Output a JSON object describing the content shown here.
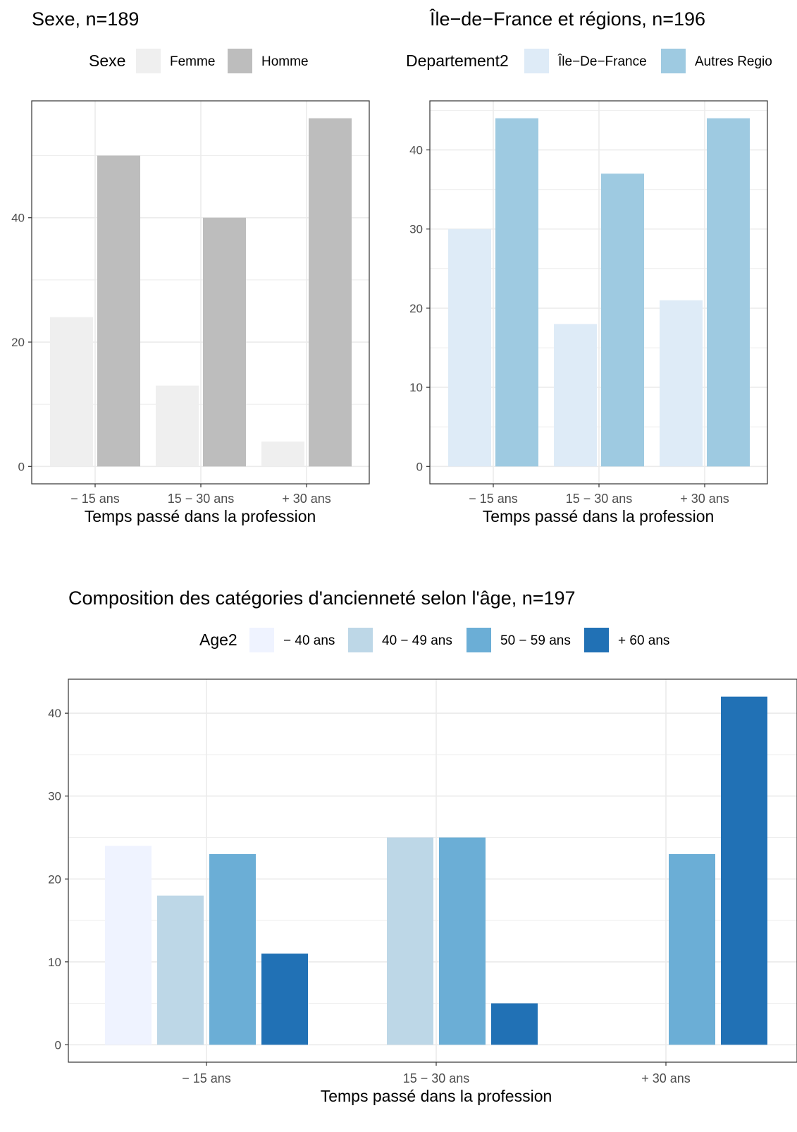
{
  "chart_data": [
    {
      "type": "bar",
      "title": "Sexe, n=189",
      "legend": {
        "title": "Sexe",
        "placement": "top"
      },
      "xlabel": "Temps passé dans la profession",
      "ylabel": "",
      "categories": [
        "− 15 ans",
        "15 − 30 ans",
        "+ 30 ans"
      ],
      "series": [
        {
          "name": "Femme",
          "values": [
            24,
            13,
            4
          ],
          "color": "#efefef"
        },
        {
          "name": "Homme",
          "values": [
            50,
            40,
            56
          ],
          "color": "#bdbdbd"
        }
      ],
      "yticks": [
        0,
        20,
        40
      ],
      "ylim": [
        -2.8,
        58.8
      ],
      "grid": true
    },
    {
      "type": "bar",
      "title": "Île−de−France et régions, n=196",
      "legend": {
        "title": "Departement2",
        "placement": "top"
      },
      "xlabel": "Temps passé dans la profession",
      "ylabel": "",
      "categories": [
        "− 15 ans",
        "15 − 30 ans",
        "+ 30 ans"
      ],
      "series": [
        {
          "name": "Île−De−France",
          "values": [
            30,
            18,
            21
          ],
          "color": "#deebf7"
        },
        {
          "name": "Autres Regio",
          "values": [
            44,
            37,
            44
          ],
          "color": "#9ecae1"
        }
      ],
      "yticks": [
        0,
        10,
        20,
        30,
        40
      ],
      "ylim": [
        -2.2,
        46.2
      ],
      "grid": true
    },
    {
      "type": "bar",
      "title": "Composition des catégories d'ancienneté selon l'âge, n=197",
      "legend": {
        "title": "Age2",
        "placement": "top"
      },
      "xlabel": "Temps passé dans la profession",
      "ylabel": "",
      "categories": [
        "− 15 ans",
        "15 − 30 ans",
        "+ 30 ans"
      ],
      "series": [
        {
          "name": "− 40 ans",
          "values": [
            24,
            0,
            0
          ],
          "color": "#eff3ff"
        },
        {
          "name": "40 − 49 ans",
          "values": [
            18,
            25,
            0
          ],
          "color": "#bdd7e7"
        },
        {
          "name": "50 − 59 ans",
          "values": [
            23,
            25,
            23
          ],
          "color": "#6baed6"
        },
        {
          "name": "+ 60 ans",
          "values": [
            11,
            5,
            42
          ],
          "color": "#2171b5"
        }
      ],
      "yticks": [
        0,
        10,
        20,
        30,
        40
      ],
      "ylim": [
        -2.1,
        44.1
      ],
      "grid": true
    }
  ]
}
